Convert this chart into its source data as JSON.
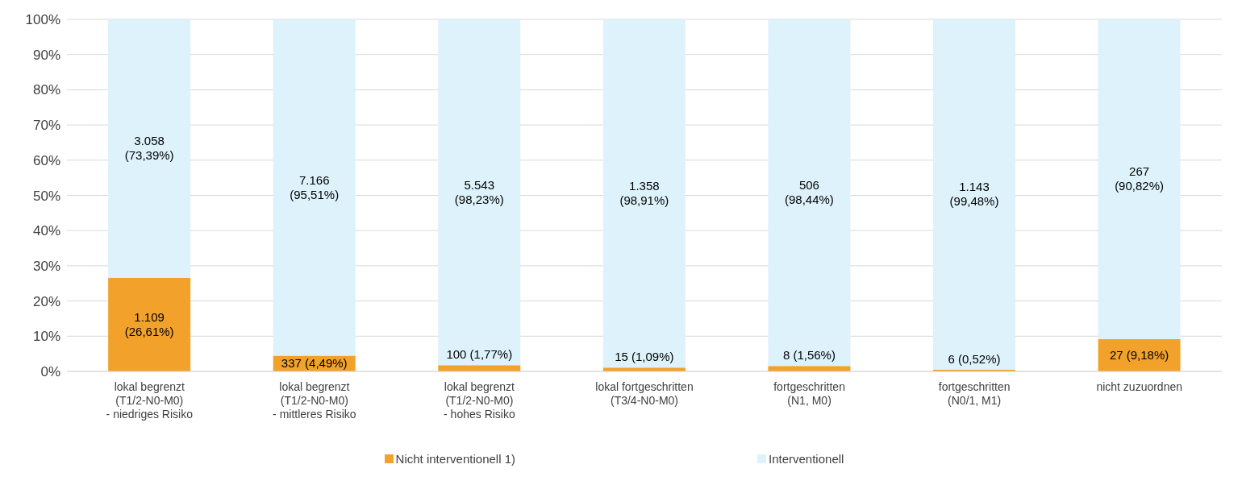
{
  "chart_data": {
    "type": "bar",
    "stacked": true,
    "categories": [
      "lokal begrenzt\n(T1/2-N0-M0)\n- niedriges Risiko",
      "lokal begrenzt\n(T1/2-N0-M0)\n- mittleres Risiko",
      "lokal begrenzt\n(T1/2-N0-M0)\n- hohes Risiko",
      "lokal fortgeschritten\n(T3/4-N0-M0)",
      "fortgeschritten\n(N1, M0)",
      "fortgeschritten\n(N0/1, M1)",
      "nicht zuzuordnen"
    ],
    "series": [
      {
        "name": "Nicht interventionell 1)",
        "color": "#f2a22a",
        "values": [
          26.61,
          4.49,
          1.77,
          1.09,
          1.56,
          0.52,
          9.18
        ],
        "value_labels": [
          "1.109\n(26,61%)",
          "337 (4,49%)",
          "100 (1,77%)",
          "15 (1,09%)",
          "8 (1,56%)",
          "6 (0,52%)",
          "27 (9,18%)"
        ]
      },
      {
        "name": "Interventionell",
        "color": "#ddf2fa",
        "values": [
          73.39,
          95.51,
          98.23,
          98.91,
          98.44,
          99.48,
          90.82
        ],
        "value_labels": [
          "3.058\n(73,39%)",
          "7.166\n(95,51%)",
          "5.543\n(98,23%)",
          "1.358\n(98,91%)",
          "506\n(98,44%)",
          "1.143\n(99,48%)",
          "267\n(90,82%)"
        ]
      }
    ],
    "ylim": [
      0,
      100
    ],
    "yticks": [
      {
        "value": 0,
        "label": "0%"
      },
      {
        "value": 10,
        "label": "10%"
      },
      {
        "value": 20,
        "label": "20%"
      },
      {
        "value": 30,
        "label": "30%"
      },
      {
        "value": 40,
        "label": "40%"
      },
      {
        "value": 50,
        "label": "50%"
      },
      {
        "value": 60,
        "label": "60%"
      },
      {
        "value": 70,
        "label": "70%"
      },
      {
        "value": 80,
        "label": "80%"
      },
      {
        "value": 90,
        "label": "90%"
      },
      {
        "value": 100,
        "label": "100%"
      }
    ],
    "grid": "y",
    "legend": "bottom"
  }
}
